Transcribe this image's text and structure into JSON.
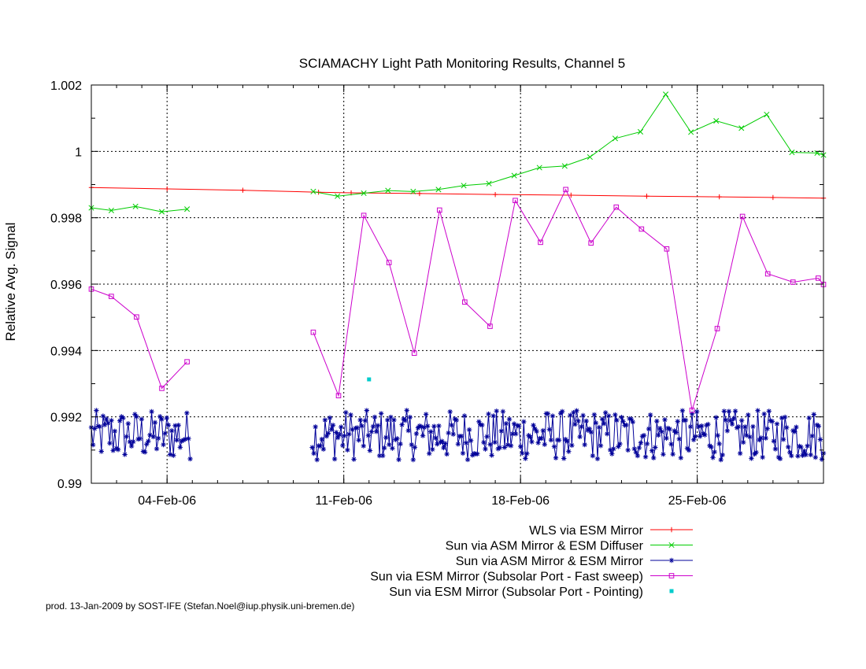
{
  "footer": "prod. 13-Jan-2009 by SOST-IFE (Stefan.Noel@iup.physik.uni-bremen.de)",
  "chart_data": {
    "type": "line",
    "title": "SCIAMACHY Light Path Monitoring Results, Channel 5",
    "xlabel": "",
    "ylabel": "Relative Avg. Signal",
    "x_unit": "date",
    "xlim": [
      "2006-02-01T00:00",
      "2006-03-02T00:00"
    ],
    "ylim": [
      0.99,
      1.002
    ],
    "y_ticks": [
      0.99,
      0.992,
      0.994,
      0.996,
      0.998,
      1,
      1.002
    ],
    "y_tick_labels": [
      "0.99",
      "0.992",
      "0.994",
      "0.996",
      "0.998",
      "1",
      "1.002"
    ],
    "x_ticks": [
      "2006-02-04",
      "2006-02-11",
      "2006-02-18",
      "2006-02-25"
    ],
    "x_tick_labels": [
      "04-Feb-06",
      "11-Feb-06",
      "18-Feb-06",
      "25-Feb-06"
    ],
    "grid": true,
    "legend_position": "bottom-right, outside plot",
    "series": [
      {
        "name": "WLS via ESM Mirror",
        "color": "#ff0000",
        "marker": "plus",
        "line": true,
        "points": [
          [
            "2006-02-01T00:00",
            0.99891
          ],
          [
            "2006-02-04T00:00",
            0.99887
          ],
          [
            "2006-02-07T00:00",
            0.99883
          ],
          [
            "2006-02-10T00:00",
            0.99877
          ],
          [
            "2006-02-11T07:00",
            0.99875
          ],
          [
            "2006-02-14T00:00",
            0.99873
          ],
          [
            "2006-02-17T00:00",
            0.9987
          ],
          [
            "2006-02-20T00:00",
            0.99868
          ],
          [
            "2006-02-23T00:00",
            0.99865
          ],
          [
            "2006-02-25T21:00",
            0.99863
          ],
          [
            "2006-02-28T00:00",
            0.99861
          ],
          [
            "2006-03-02T00:00",
            0.99859
          ]
        ]
      },
      {
        "name": "Sun via ASM Mirror & ESM Diffuser",
        "color": "#00cc00",
        "marker": "x",
        "line": true,
        "segments": [
          [
            [
              "2006-02-01T00:00",
              0.9983
            ],
            [
              "2006-02-01T19:00",
              0.99822
            ],
            [
              "2006-02-02T18:00",
              0.99834
            ],
            [
              "2006-02-03T19:00",
              0.99818
            ],
            [
              "2006-02-04T19:00",
              0.99826
            ]
          ],
          [
            [
              "2006-02-09T19:00",
              0.99879
            ],
            [
              "2006-02-10T18:00",
              0.99865
            ],
            [
              "2006-02-11T19:00",
              0.99874
            ],
            [
              "2006-02-12T18:00",
              0.99882
            ],
            [
              "2006-02-13T18:00",
              0.99879
            ],
            [
              "2006-02-14T18:00",
              0.99885
            ],
            [
              "2006-02-15T18:00",
              0.99897
            ],
            [
              "2006-02-16T18:00",
              0.99903
            ],
            [
              "2006-02-17T18:00",
              0.99927
            ],
            [
              "2006-02-18T18:00",
              0.99951
            ],
            [
              "2006-02-19T18:00",
              0.99956
            ],
            [
              "2006-02-20T18:00",
              0.99983
            ],
            [
              "2006-02-21T18:00",
              1.00039
            ],
            [
              "2006-02-22T18:00",
              1.00059
            ],
            [
              "2006-02-23T18:00",
              1.00172
            ],
            [
              "2006-02-24T18:00",
              1.00058
            ],
            [
              "2006-02-25T18:00",
              1.00092
            ],
            [
              "2006-02-26T18:00",
              1.0007
            ],
            [
              "2006-02-27T18:00",
              1.00111
            ],
            [
              "2006-02-28T18:00",
              0.99997
            ],
            [
              "2006-03-01T18:00",
              0.99995
            ],
            [
              "2006-03-02T00:00",
              0.99989
            ]
          ]
        ]
      },
      {
        "name": "Sun via ASM Mirror & ESM Mirror",
        "color": "#000099",
        "marker": "star",
        "line": true,
        "noisy_between": [
          0.9904,
          0.9924
        ],
        "segments": [
          {
            "from": "2006-02-01T00:00",
            "to": "2006-02-04T22:00",
            "count": 60
          },
          {
            "from": "2006-02-09T18:00",
            "to": "2006-03-02T00:00",
            "count": 320
          }
        ]
      },
      {
        "name": "Sun via ESM Mirror (Subsolar Port - Fast sweep)",
        "color": "#cc00cc",
        "marker": "square",
        "line": true,
        "segments": [
          [
            [
              "2006-02-01T00:00",
              0.99585
            ],
            [
              "2006-02-01T19:00",
              0.99563
            ],
            [
              "2006-02-02T19:00",
              0.99501
            ],
            [
              "2006-02-03T19:00",
              0.99286
            ],
            [
              "2006-02-04T19:00",
              0.99366
            ]
          ],
          [
            [
              "2006-02-09T19:00",
              0.99455
            ],
            [
              "2006-02-10T19:00",
              0.99264
            ],
            [
              "2006-02-11T19:00",
              0.99807
            ],
            [
              "2006-02-12T19:00",
              0.99665
            ],
            [
              "2006-02-13T19:00",
              0.99392
            ],
            [
              "2006-02-14T19:00",
              0.99823
            ],
            [
              "2006-02-15T19:00",
              0.99546
            ],
            [
              "2006-02-16T19:00",
              0.99473
            ],
            [
              "2006-02-17T19:00",
              0.99852
            ],
            [
              "2006-02-18T19:00",
              0.99726
            ],
            [
              "2006-02-19T19:00",
              0.99885
            ],
            [
              "2006-02-20T19:00",
              0.99724
            ],
            [
              "2006-02-21T19:00",
              0.99832
            ],
            [
              "2006-02-22T19:00",
              0.99766
            ],
            [
              "2006-02-23T19:00",
              0.99706
            ],
            [
              "2006-02-24T19:00",
              0.9922
            ],
            [
              "2006-02-25T19:00",
              0.99466
            ],
            [
              "2006-02-26T19:00",
              0.99804
            ],
            [
              "2006-02-27T19:00",
              0.99631
            ],
            [
              "2006-02-28T19:00",
              0.99606
            ],
            [
              "2006-03-01T19:00",
              0.99618
            ],
            [
              "2006-03-02T00:00",
              0.99599
            ]
          ]
        ]
      },
      {
        "name": "Sun via ESM Mirror (Subsolar Port - Pointing)",
        "color": "#00cccc",
        "marker": "dot",
        "line": false,
        "points": [
          [
            "2006-02-12T00:00",
            0.99313
          ]
        ]
      }
    ]
  }
}
